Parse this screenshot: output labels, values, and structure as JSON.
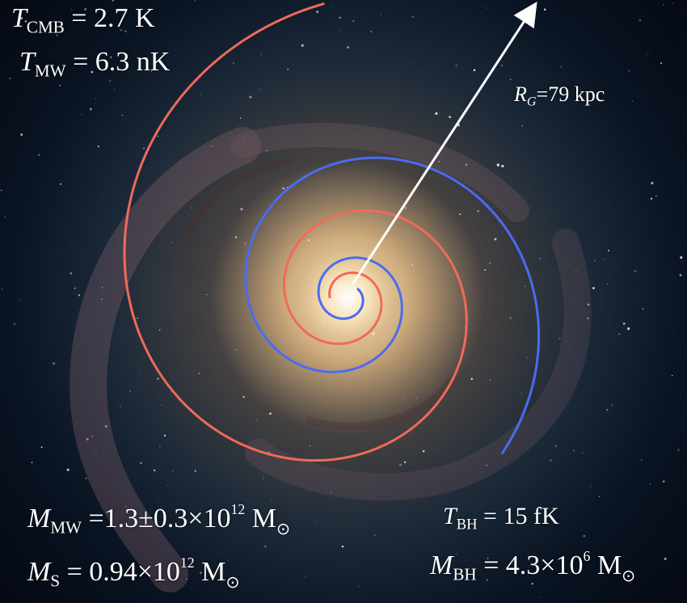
{
  "labels": {
    "t_cmb": {
      "symbol": "T",
      "sub": "CMB",
      "rest": " = 2.7 K"
    },
    "t_mw": {
      "symbol": "T",
      "sub": "MW",
      "rest": " = 6.3 nK"
    },
    "r_g": {
      "symbol": "R",
      "sub": "G",
      "rest": "=79 kpc"
    },
    "m_mw": {
      "symbol": "M",
      "sub": "MW",
      "pre": " =1.3±0.3×10",
      "exp": "12",
      "unit": " M",
      "sun": "⊙"
    },
    "m_s": {
      "symbol": "M",
      "sub": "S",
      "pre": " = 0.94×10",
      "exp": "12",
      "unit": " M",
      "sun": "⊙"
    },
    "t_bh": {
      "symbol": "T",
      "sub": "BH",
      "rest": " = 15 fK"
    },
    "m_bh": {
      "symbol": "M",
      "sub": "BH",
      "pre": " = 4.3×10",
      "exp": "6",
      "unit": " M",
      "sun": "⊙"
    }
  },
  "colors": {
    "blue_spiral": "#4a6cf0",
    "red_spiral": "#f06a5a",
    "arrow": "#ffffff",
    "core": "#fffbe8"
  },
  "graphics": {
    "background": "spiral-galaxy-photo",
    "overlays": [
      "blue-spiral-curve",
      "red-spiral-curve",
      "radius-arrow"
    ]
  }
}
